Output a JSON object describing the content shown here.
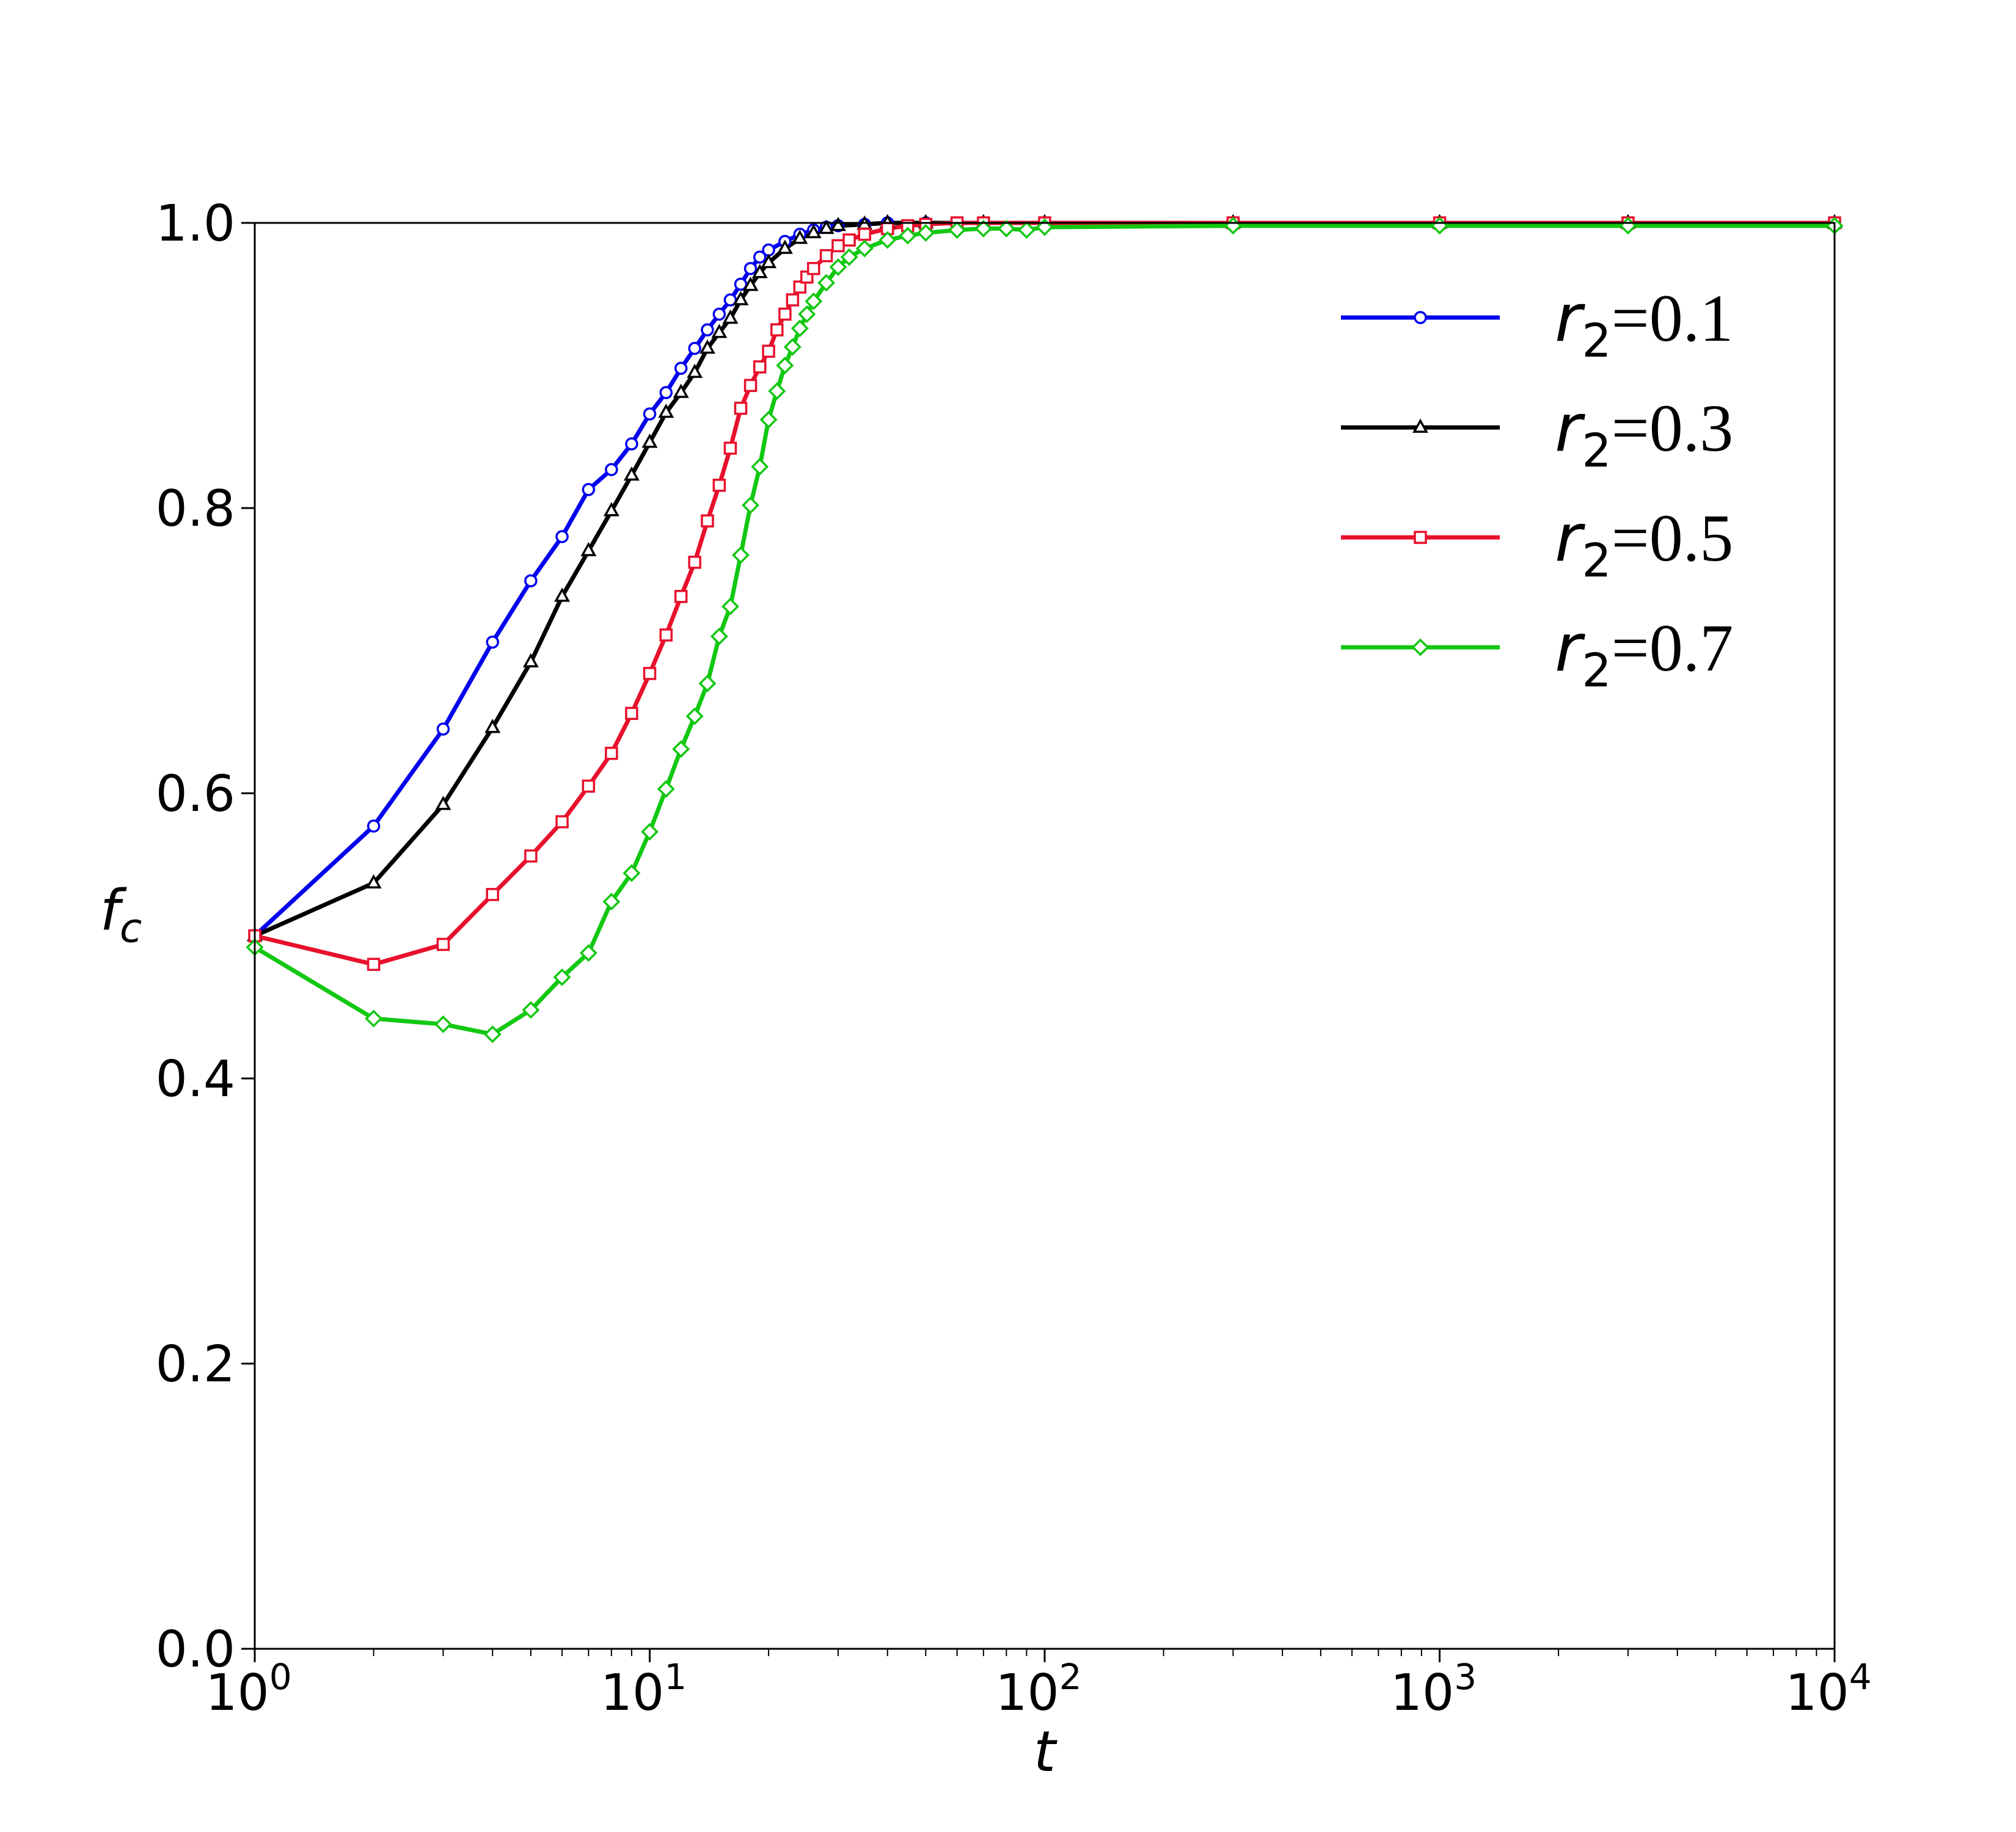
{
  "chart_data": {
    "type": "line",
    "xscale": "log",
    "xlabel": "t",
    "ylabel": "f",
    "ylabel_sub": "c",
    "xlim": [
      1,
      10000
    ],
    "ylim": [
      0.0,
      1.0
    ],
    "grid": false,
    "legend_position": "top-right",
    "y_ticks": [
      "0.0",
      "0.2",
      "0.4",
      "0.6",
      "0.8",
      "1.0"
    ],
    "x_ticks": [
      {
        "base": "10",
        "exp": "0"
      },
      {
        "base": "10",
        "exp": "1"
      },
      {
        "base": "10",
        "exp": "2"
      },
      {
        "base": "10",
        "exp": "3"
      },
      {
        "base": "10",
        "exp": "4"
      }
    ],
    "series": [
      {
        "name": "r2=0.1",
        "legend_var": "r",
        "legend_sub": "2",
        "legend_rest": "=0.1",
        "color": "#0000ee",
        "marker": "circle",
        "x": [
          1,
          2,
          3,
          4,
          5,
          6,
          7,
          8,
          9,
          10,
          11,
          12,
          13,
          14,
          15,
          16,
          17,
          18,
          19,
          20,
          22,
          24,
          26,
          28,
          30,
          35,
          40,
          50,
          70,
          100,
          300,
          1000,
          3000,
          10000
        ],
        "y": [
          0.5,
          0.577,
          0.645,
          0.706,
          0.749,
          0.78,
          0.813,
          0.827,
          0.845,
          0.866,
          0.881,
          0.898,
          0.912,
          0.925,
          0.936,
          0.946,
          0.957,
          0.968,
          0.976,
          0.981,
          0.987,
          0.992,
          0.995,
          0.997,
          0.998,
          0.999,
          1.0,
          1.0,
          1.0,
          1.0,
          1.0,
          1.0,
          1.0,
          1.0
        ]
      },
      {
        "name": "r2=0.3",
        "legend_var": "r",
        "legend_sub": "2",
        "legend_rest": "=0.3",
        "color": "#000000",
        "marker": "triangle",
        "x": [
          1,
          2,
          3,
          4,
          5,
          6,
          7,
          8,
          9,
          10,
          11,
          12,
          13,
          14,
          15,
          16,
          17,
          18,
          19,
          20,
          22,
          24,
          26,
          28,
          30,
          35,
          40,
          50,
          70,
          100,
          300,
          1000,
          3000,
          10000
        ],
        "y": [
          0.5,
          0.537,
          0.592,
          0.646,
          0.692,
          0.738,
          0.77,
          0.798,
          0.823,
          0.846,
          0.867,
          0.881,
          0.895,
          0.912,
          0.923,
          0.933,
          0.946,
          0.956,
          0.965,
          0.972,
          0.982,
          0.989,
          0.993,
          0.996,
          0.998,
          0.999,
          1.0,
          1.0,
          1.0,
          1.0,
          1.0,
          1.0,
          1.0,
          1.0
        ]
      },
      {
        "name": "r2=0.5",
        "legend_var": "r",
        "legend_sub": "2",
        "legend_rest": "=0.5",
        "color": "#e8102c",
        "marker": "square",
        "x": [
          1,
          2,
          3,
          4,
          5,
          6,
          7,
          8,
          9,
          10,
          11,
          12,
          13,
          14,
          15,
          16,
          17,
          18,
          19,
          20,
          21,
          22,
          23,
          24,
          25,
          26,
          28,
          30,
          32,
          35,
          40,
          45,
          50,
          60,
          70,
          100,
          300,
          1000,
          3000,
          10000
        ],
        "y": [
          0.5,
          0.48,
          0.494,
          0.529,
          0.556,
          0.58,
          0.605,
          0.628,
          0.656,
          0.684,
          0.711,
          0.738,
          0.762,
          0.791,
          0.816,
          0.842,
          0.87,
          0.886,
          0.899,
          0.91,
          0.925,
          0.936,
          0.946,
          0.955,
          0.962,
          0.968,
          0.977,
          0.984,
          0.988,
          0.992,
          0.996,
          0.998,
          0.999,
          1.0,
          1.0,
          1.0,
          1.0,
          1.0,
          1.0,
          1.0
        ]
      },
      {
        "name": "r2=0.7",
        "legend_var": "r",
        "legend_sub": "2",
        "legend_rest": "=0.7",
        "color": "#12c812",
        "marker": "diamond",
        "x": [
          1,
          2,
          3,
          4,
          5,
          6,
          7,
          8,
          9,
          10,
          11,
          12,
          13,
          14,
          15,
          16,
          17,
          18,
          19,
          20,
          21,
          22,
          23,
          24,
          25,
          26,
          28,
          30,
          32,
          35,
          40,
          45,
          50,
          60,
          70,
          80,
          90,
          100,
          300,
          1000,
          3000,
          10000
        ],
        "y": [
          0.492,
          0.442,
          0.438,
          0.431,
          0.448,
          0.471,
          0.488,
          0.524,
          0.544,
          0.573,
          0.603,
          0.631,
          0.654,
          0.677,
          0.71,
          0.731,
          0.767,
          0.802,
          0.829,
          0.862,
          0.882,
          0.9,
          0.913,
          0.926,
          0.936,
          0.945,
          0.958,
          0.969,
          0.976,
          0.982,
          0.988,
          0.991,
          0.993,
          0.995,
          0.996,
          0.996,
          0.995,
          0.997,
          0.998,
          0.998,
          0.998,
          0.998
        ]
      }
    ]
  }
}
